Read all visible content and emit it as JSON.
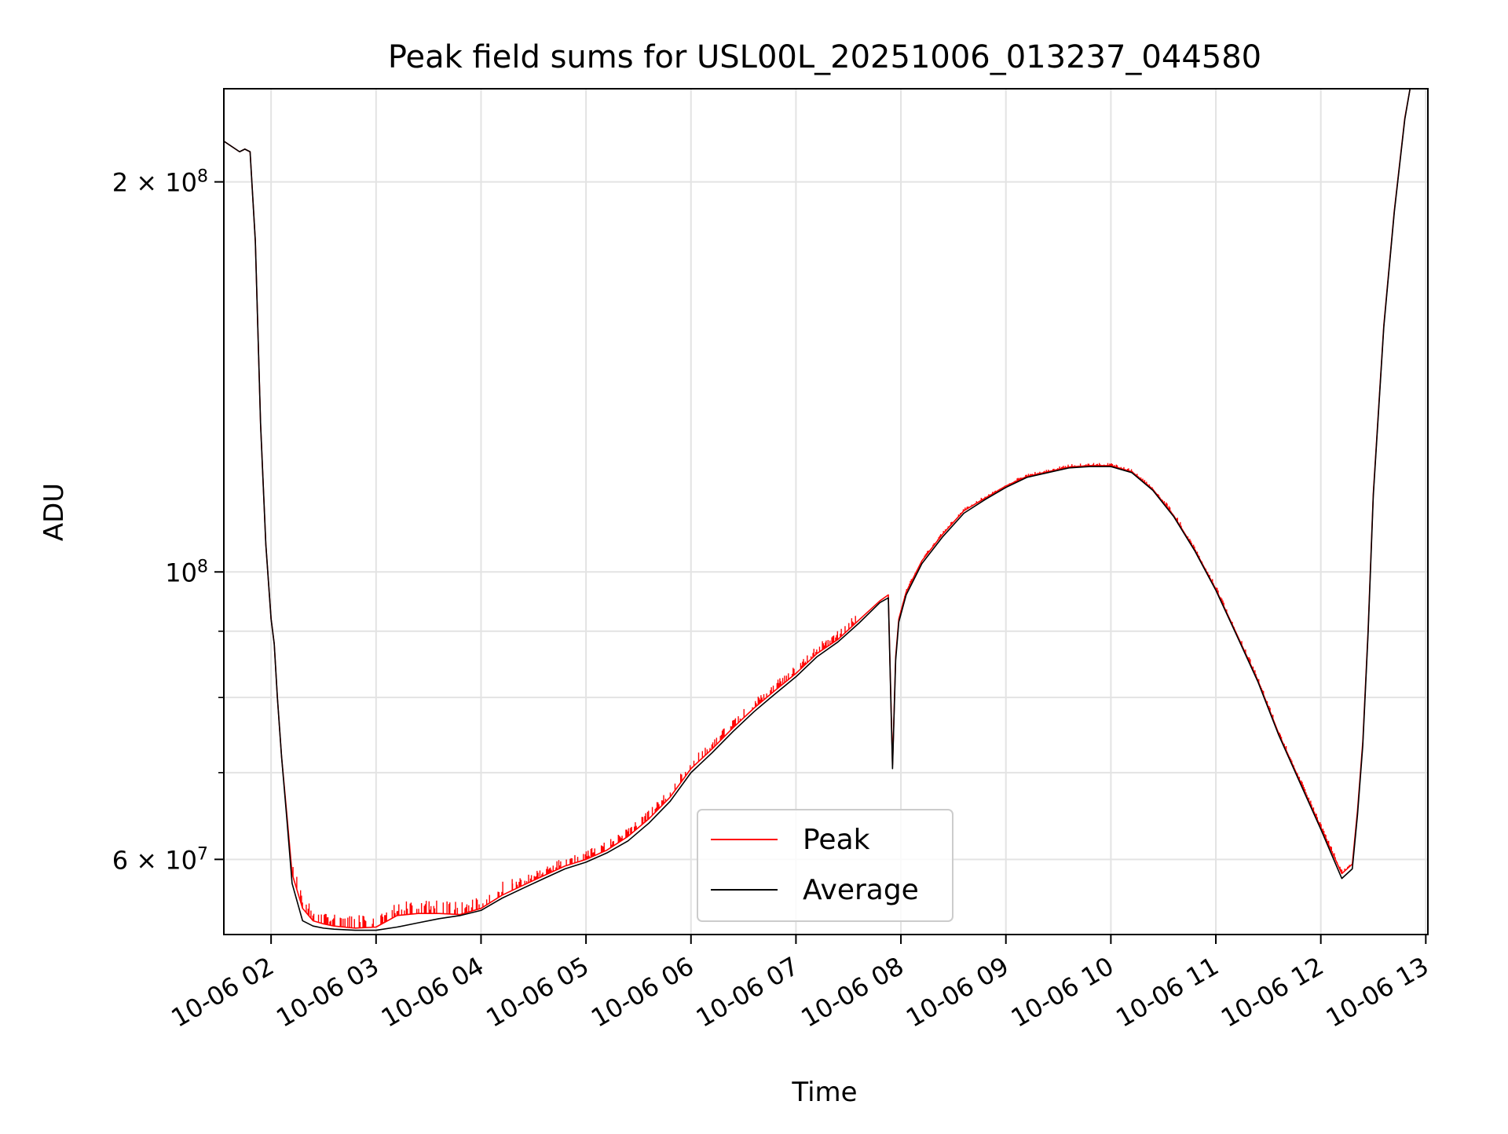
{
  "chart_data": {
    "type": "line",
    "title": "Peak field sums for USL00L_20251006_013237_044580",
    "xlabel": "Time",
    "ylabel": "ADU",
    "yscale": "log",
    "xlim": [
      1.55,
      13.02
    ],
    "ylim": [
      52500000,
      236000000
    ],
    "grid": true,
    "legend_position": "lower-center",
    "x_ticks": [
      2,
      3,
      4,
      5,
      6,
      7,
      8,
      9,
      10,
      11,
      12,
      13
    ],
    "x_tick_labels": [
      "10-06 02",
      "10-06 03",
      "10-06 04",
      "10-06 05",
      "10-06 06",
      "10-06 07",
      "10-06 08",
      "10-06 09",
      "10-06 10",
      "10-06 11",
      "10-06 12",
      "10-06 13"
    ],
    "y_major_ticks": [
      {
        "value": 200000000,
        "mantissa": "2",
        "exponent": "8"
      },
      {
        "value": 100000000,
        "mantissa": "",
        "exponent": "8"
      },
      {
        "value": 60000000,
        "mantissa": "6",
        "exponent": "7"
      }
    ],
    "y_minor_ticks": [
      70000000,
      80000000,
      90000000
    ],
    "x_unit": "hours since 2025-10-06 00:00",
    "series": [
      {
        "name": "Peak",
        "color": "#ff0000",
        "noise": true,
        "x": [
          1.55,
          1.7,
          1.75,
          1.8,
          1.85,
          1.9,
          1.95,
          2.0,
          2.03,
          2.06,
          2.1,
          2.15,
          2.2,
          2.3,
          2.4,
          2.5,
          2.6,
          2.8,
          3.0,
          3.2,
          3.4,
          3.6,
          3.8,
          4.0,
          4.2,
          4.4,
          4.6,
          4.8,
          5.0,
          5.2,
          5.4,
          5.6,
          5.8,
          6.0,
          6.2,
          6.4,
          6.6,
          6.8,
          7.0,
          7.2,
          7.4,
          7.6,
          7.8,
          7.88,
          7.92,
          7.95,
          7.98,
          8.05,
          8.2,
          8.4,
          8.6,
          8.8,
          9.0,
          9.2,
          9.4,
          9.6,
          9.8,
          10.0,
          10.2,
          10.4,
          10.6,
          10.8,
          11.0,
          11.2,
          11.4,
          11.6,
          11.8,
          12.0,
          12.2,
          12.3,
          12.35,
          12.4,
          12.45,
          12.5,
          12.6,
          12.7,
          12.8,
          12.85,
          12.9,
          12.95
        ],
        "y": [
          215000000,
          211000000,
          212000000,
          211000000,
          180000000,
          130000000,
          105000000,
          92000000,
          88000000,
          80000000,
          72000000,
          65000000,
          58500000,
          55000000,
          53800000,
          53500000,
          53300000,
          53100000,
          53200000,
          54300000,
          54500000,
          54500000,
          54400000,
          55000000,
          56300000,
          57300000,
          58300000,
          59300000,
          60000000,
          61000000,
          62500000,
          64500000,
          67000000,
          70500000,
          73000000,
          75800000,
          78500000,
          81000000,
          83500000,
          86500000,
          88700000,
          91800000,
          95000000,
          96000000,
          71000000,
          86000000,
          92000000,
          96500000,
          102000000,
          107000000,
          111500000,
          114000000,
          116500000,
          118500000,
          119500000,
          120500000,
          120800000,
          120800000,
          119500000,
          115800000,
          110500000,
          104000000,
          97000000,
          89500000,
          82500000,
          75000000,
          69000000,
          63500000,
          58500000,
          59500000,
          65500000,
          74000000,
          90000000,
          115000000,
          155000000,
          190000000,
          224000000,
          236000000,
          236000000,
          236000000
        ]
      },
      {
        "name": "Average",
        "color": "#000000",
        "noise": false,
        "x": [
          1.55,
          1.7,
          1.75,
          1.8,
          1.85,
          1.9,
          1.95,
          2.0,
          2.03,
          2.06,
          2.1,
          2.15,
          2.2,
          2.3,
          2.4,
          2.5,
          2.6,
          2.8,
          3.0,
          3.2,
          3.4,
          3.6,
          3.8,
          4.0,
          4.2,
          4.4,
          4.6,
          4.8,
          5.0,
          5.2,
          5.4,
          5.6,
          5.8,
          6.0,
          6.2,
          6.4,
          6.6,
          6.8,
          7.0,
          7.2,
          7.4,
          7.6,
          7.8,
          7.88,
          7.92,
          7.95,
          7.98,
          8.05,
          8.2,
          8.4,
          8.6,
          8.8,
          9.0,
          9.2,
          9.4,
          9.6,
          9.8,
          10.0,
          10.2,
          10.4,
          10.6,
          10.8,
          11.0,
          11.2,
          11.4,
          11.6,
          11.8,
          12.0,
          12.2,
          12.3,
          12.35,
          12.4,
          12.45,
          12.5,
          12.6,
          12.7,
          12.8,
          12.85,
          12.9,
          12.95
        ],
        "y": [
          215000000,
          211000000,
          212000000,
          211000000,
          180000000,
          130000000,
          105000000,
          92000000,
          88000000,
          80000000,
          72000000,
          64500000,
          57500000,
          53800000,
          53300000,
          53100000,
          53000000,
          52900000,
          52900000,
          53200000,
          53600000,
          54000000,
          54300000,
          54800000,
          56000000,
          57000000,
          58000000,
          59000000,
          59700000,
          60700000,
          62000000,
          64000000,
          66500000,
          70000000,
          72500000,
          75300000,
          78000000,
          80500000,
          83000000,
          86000000,
          88300000,
          91300000,
          94700000,
          95500000,
          70500000,
          85500000,
          91500000,
          96000000,
          101500000,
          106500000,
          111000000,
          113700000,
          116200000,
          118300000,
          119300000,
          120300000,
          120600000,
          120600000,
          119300000,
          115600000,
          110300000,
          103800000,
          96800000,
          89300000,
          82300000,
          74800000,
          68800000,
          63300000,
          58000000,
          59000000,
          65000000,
          73500000,
          89500000,
          114500000,
          154500000,
          189500000,
          223500000,
          236000000,
          236000000,
          236000000
        ]
      }
    ]
  }
}
